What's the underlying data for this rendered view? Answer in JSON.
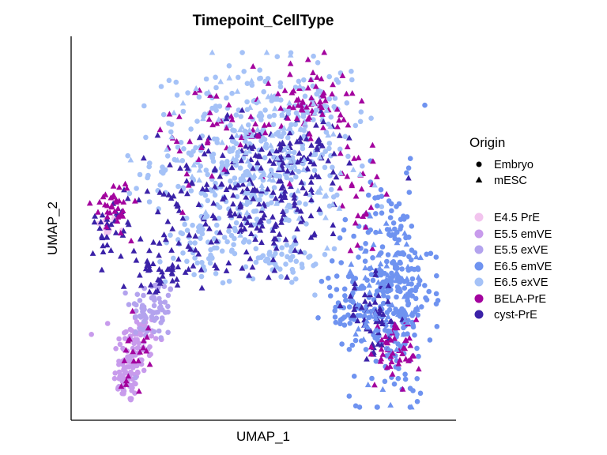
{
  "chart_data": {
    "type": "scatter",
    "title": "Timepoint_CellType",
    "xlabel": "UMAP_1",
    "ylabel": "UMAP_2",
    "xlim": [
      0,
      10
    ],
    "ylim": [
      0,
      10
    ],
    "ticks_shown": false,
    "grid": false,
    "legend_placement": "right",
    "shape_legend": {
      "title": "Origin",
      "entries": [
        {
          "name": "Embryo",
          "shape": "circle"
        },
        {
          "name": "mESC",
          "shape": "triangle"
        }
      ]
    },
    "color_legend": {
      "entries": [
        {
          "name": "E4.5 PrE",
          "color": "#F2C4EE"
        },
        {
          "name": "E5.5 emVE",
          "color": "#C89BEC"
        },
        {
          "name": "E5.5 exVE",
          "color": "#B3A3EE"
        },
        {
          "name": "E6.5 emVE",
          "color": "#6F93F0"
        },
        {
          "name": "E6.5 exVE",
          "color": "#A5C2F7"
        },
        {
          "name": "BELA-PrE",
          "color": "#A3039E"
        },
        {
          "name": "cyst-PrE",
          "color": "#3B22A8"
        }
      ]
    },
    "clusters": [
      {
        "group": "E4.5 PrE",
        "origin": "Embryo",
        "center": [
          0.75,
          5.1
        ],
        "spread": [
          0.15,
          0.15
        ],
        "n": 12
      },
      {
        "group": "E5.5 emVE",
        "origin": "Embryo",
        "center": [
          1.35,
          0.9
        ],
        "spread": [
          0.2,
          0.35
        ],
        "n": 60
      },
      {
        "group": "E5.5 emVE",
        "origin": "Embryo",
        "center": [
          1.55,
          1.9
        ],
        "spread": [
          0.3,
          0.45
        ],
        "n": 70
      },
      {
        "group": "E5.5 exVE",
        "origin": "Embryo",
        "center": [
          2.0,
          2.8
        ],
        "spread": [
          0.3,
          0.45
        ],
        "n": 70
      },
      {
        "group": "E6.5 exVE",
        "origin": "Embryo",
        "center": [
          4.6,
          7.0
        ],
        "spread": [
          1.3,
          1.2
        ],
        "n": 330
      },
      {
        "group": "E6.5 exVE",
        "origin": "Embryo",
        "center": [
          3.8,
          4.7
        ],
        "spread": [
          0.7,
          0.6
        ],
        "n": 80
      },
      {
        "group": "E6.5 exVE",
        "origin": "Embryo",
        "center": [
          6.2,
          8.2
        ],
        "spread": [
          0.6,
          0.6
        ],
        "n": 60
      },
      {
        "group": "E6.5 exVE",
        "origin": "Embryo",
        "center": [
          5.6,
          4.1
        ],
        "spread": [
          0.6,
          0.3
        ],
        "n": 40
      },
      {
        "group": "E6.5 emVE",
        "origin": "Embryo",
        "center": [
          8.5,
          3.3
        ],
        "spread": [
          0.55,
          1.5
        ],
        "n": 280
      },
      {
        "group": "E6.5 emVE",
        "origin": "Embryo",
        "center": [
          7.3,
          2.9
        ],
        "spread": [
          0.35,
          0.6
        ],
        "n": 40
      },
      {
        "group": "cyst-PrE",
        "origin": "mESC",
        "center": [
          4.8,
          6.0
        ],
        "spread": [
          1.3,
          1.0
        ],
        "n": 240
      },
      {
        "group": "cyst-PrE",
        "origin": "mESC",
        "center": [
          0.9,
          5.2
        ],
        "spread": [
          0.3,
          0.35
        ],
        "n": 30
      },
      {
        "group": "cyst-PrE",
        "origin": "mESC",
        "center": [
          2.2,
          3.9
        ],
        "spread": [
          0.5,
          0.4
        ],
        "n": 50
      },
      {
        "group": "cyst-PrE",
        "origin": "mESC",
        "center": [
          8.0,
          2.6
        ],
        "spread": [
          0.4,
          0.5
        ],
        "n": 50
      },
      {
        "group": "cyst-PrE",
        "origin": "mESC",
        "center": [
          6.2,
          7.2
        ],
        "spread": [
          0.5,
          0.6
        ],
        "n": 40
      },
      {
        "group": "BELA-PrE",
        "origin": "mESC",
        "center": [
          0.9,
          5.7
        ],
        "spread": [
          0.25,
          0.35
        ],
        "n": 35
      },
      {
        "group": "BELA-PrE",
        "origin": "mESC",
        "center": [
          6.4,
          8.6
        ],
        "spread": [
          0.45,
          0.5
        ],
        "n": 60
      },
      {
        "group": "BELA-PrE",
        "origin": "mESC",
        "center": [
          4.1,
          7.6
        ],
        "spread": [
          1.1,
          0.8
        ],
        "n": 50
      },
      {
        "group": "BELA-PrE",
        "origin": "mESC",
        "center": [
          8.6,
          1.7
        ],
        "spread": [
          0.35,
          0.45
        ],
        "n": 45
      },
      {
        "group": "BELA-PrE",
        "origin": "mESC",
        "center": [
          7.6,
          6.0
        ],
        "spread": [
          0.3,
          0.8
        ],
        "n": 30
      },
      {
        "group": "BELA-PrE",
        "origin": "mESC",
        "center": [
          1.5,
          1.7
        ],
        "spread": [
          0.2,
          0.6
        ],
        "n": 20
      },
      {
        "group": "E6.5 exVE",
        "origin": "mESC",
        "center": [
          5.0,
          7.2
        ],
        "spread": [
          1.2,
          1.1
        ],
        "n": 120
      },
      {
        "group": "E6.5 emVE",
        "origin": "mESC",
        "center": [
          8.4,
          3.2
        ],
        "spread": [
          0.5,
          1.3
        ],
        "n": 80
      }
    ]
  }
}
